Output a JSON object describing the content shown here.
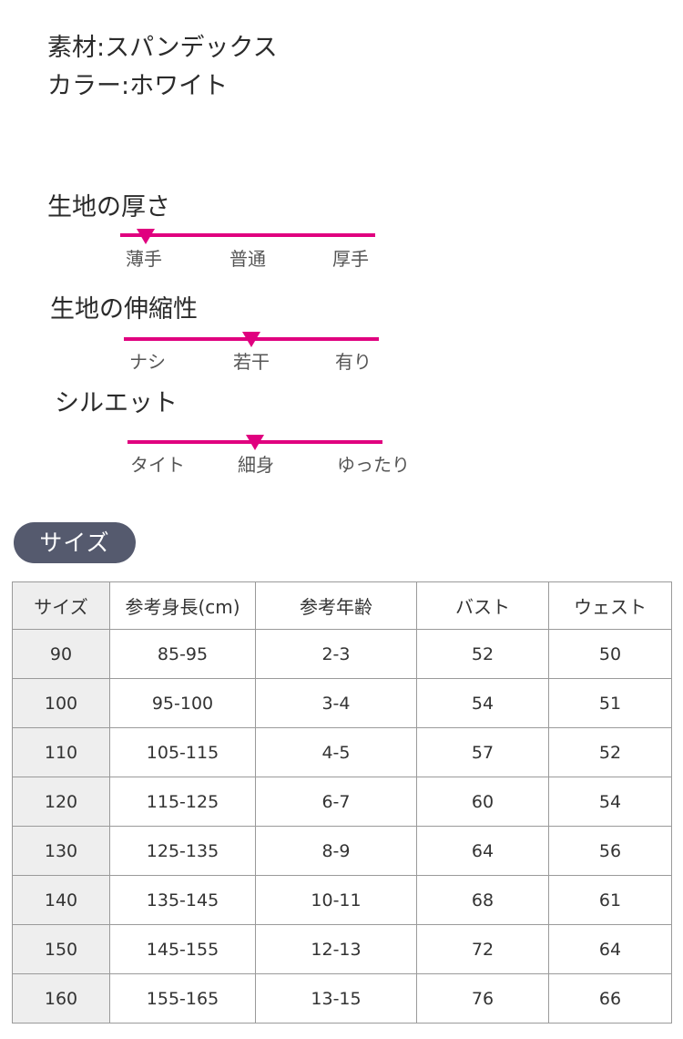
{
  "info": {
    "material": "素材:スパンデックス",
    "color": "カラー:ホワイト"
  },
  "scales": [
    {
      "title": "生地の厚さ",
      "labels": [
        "薄手",
        "普通",
        "厚手"
      ],
      "position": 0.1
    },
    {
      "title": "生地の伸縮性",
      "labels": [
        "ナシ",
        "若干",
        "有り"
      ],
      "position": 0.5
    },
    {
      "title": "シルエット",
      "labels": [
        "タイト",
        "細身",
        "ゆったり"
      ],
      "position": 0.5
    }
  ],
  "size_section": {
    "badge": "サイズ",
    "headers": [
      "サイズ",
      "参考身長(cm)",
      "参考年齢",
      "バスト",
      "ウェスト"
    ],
    "rows": [
      [
        "90",
        "85-95",
        "2-3",
        "52",
        "50"
      ],
      [
        "100",
        "95-100",
        "3-4",
        "54",
        "51"
      ],
      [
        "110",
        "105-115",
        "4-5",
        "57",
        "52"
      ],
      [
        "120",
        "115-125",
        "6-7",
        "60",
        "54"
      ],
      [
        "130",
        "125-135",
        "8-9",
        "64",
        "56"
      ],
      [
        "140",
        "135-145",
        "10-11",
        "68",
        "61"
      ],
      [
        "150",
        "145-155",
        "12-13",
        "72",
        "64"
      ],
      [
        "160",
        "155-165",
        "13-15",
        "76",
        "66"
      ]
    ]
  },
  "colors": {
    "accent": "#e0007f",
    "badge_bg": "#555a6e"
  }
}
